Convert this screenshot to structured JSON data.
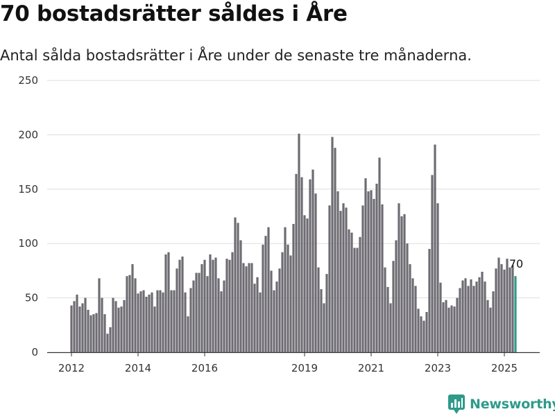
{
  "title": "70 bostadsrätter såldes i Åre",
  "subtitle": "Antal sålda bostadsrätter i Åre under de senaste tre månaderna.",
  "brand": {
    "name": "Newsworthy",
    "icon": "newsworthy-logo-icon"
  },
  "colors": {
    "bar": "#6d6c72",
    "highlight": "#2e9a8a",
    "grid": "#dddddd",
    "brand": "#2e9a8a"
  },
  "chart_data": {
    "type": "bar",
    "x_unit": "month",
    "start_month": "2012-01",
    "ylim": [
      0,
      250
    ],
    "yticks": [
      0,
      50,
      100,
      150,
      200,
      250
    ],
    "xtick_labels": [
      "2012",
      "2014",
      "2016",
      "2019",
      "2021",
      "2023",
      "2025"
    ],
    "grid": true,
    "highlight_label": "70",
    "values": [
      43,
      47,
      53,
      42,
      45,
      50,
      39,
      34,
      35,
      36,
      68,
      50,
      35,
      17,
      23,
      50,
      47,
      41,
      42,
      48,
      70,
      71,
      81,
      68,
      54,
      56,
      57,
      51,
      53,
      55,
      42,
      57,
      57,
      55,
      90,
      92,
      57,
      57,
      77,
      85,
      88,
      55,
      33,
      59,
      66,
      73,
      73,
      81,
      85,
      70,
      90,
      85,
      87,
      68,
      56,
      66,
      86,
      85,
      92,
      124,
      119,
      103,
      82,
      79,
      82,
      82,
      63,
      69,
      55,
      99,
      107,
      115,
      75,
      57,
      65,
      77,
      92,
      115,
      99,
      89,
      118,
      164,
      201,
      161,
      126,
      123,
      159,
      168,
      146,
      78,
      58,
      45,
      72,
      135,
      198,
      188,
      148,
      130,
      137,
      133,
      113,
      110,
      96,
      96,
      106,
      135,
      160,
      148,
      149,
      141,
      155,
      179,
      136,
      78,
      60,
      45,
      84,
      103,
      137,
      125,
      127,
      100,
      81,
      68,
      61,
      40,
      33,
      29,
      37,
      95,
      163,
      191,
      137,
      64,
      46,
      48,
      41,
      43,
      42,
      50,
      59,
      66,
      68,
      61,
      67,
      61,
      65,
      69,
      74,
      65,
      48,
      41,
      56,
      77,
      87,
      81,
      76,
      86,
      78,
      80,
      70
    ]
  }
}
